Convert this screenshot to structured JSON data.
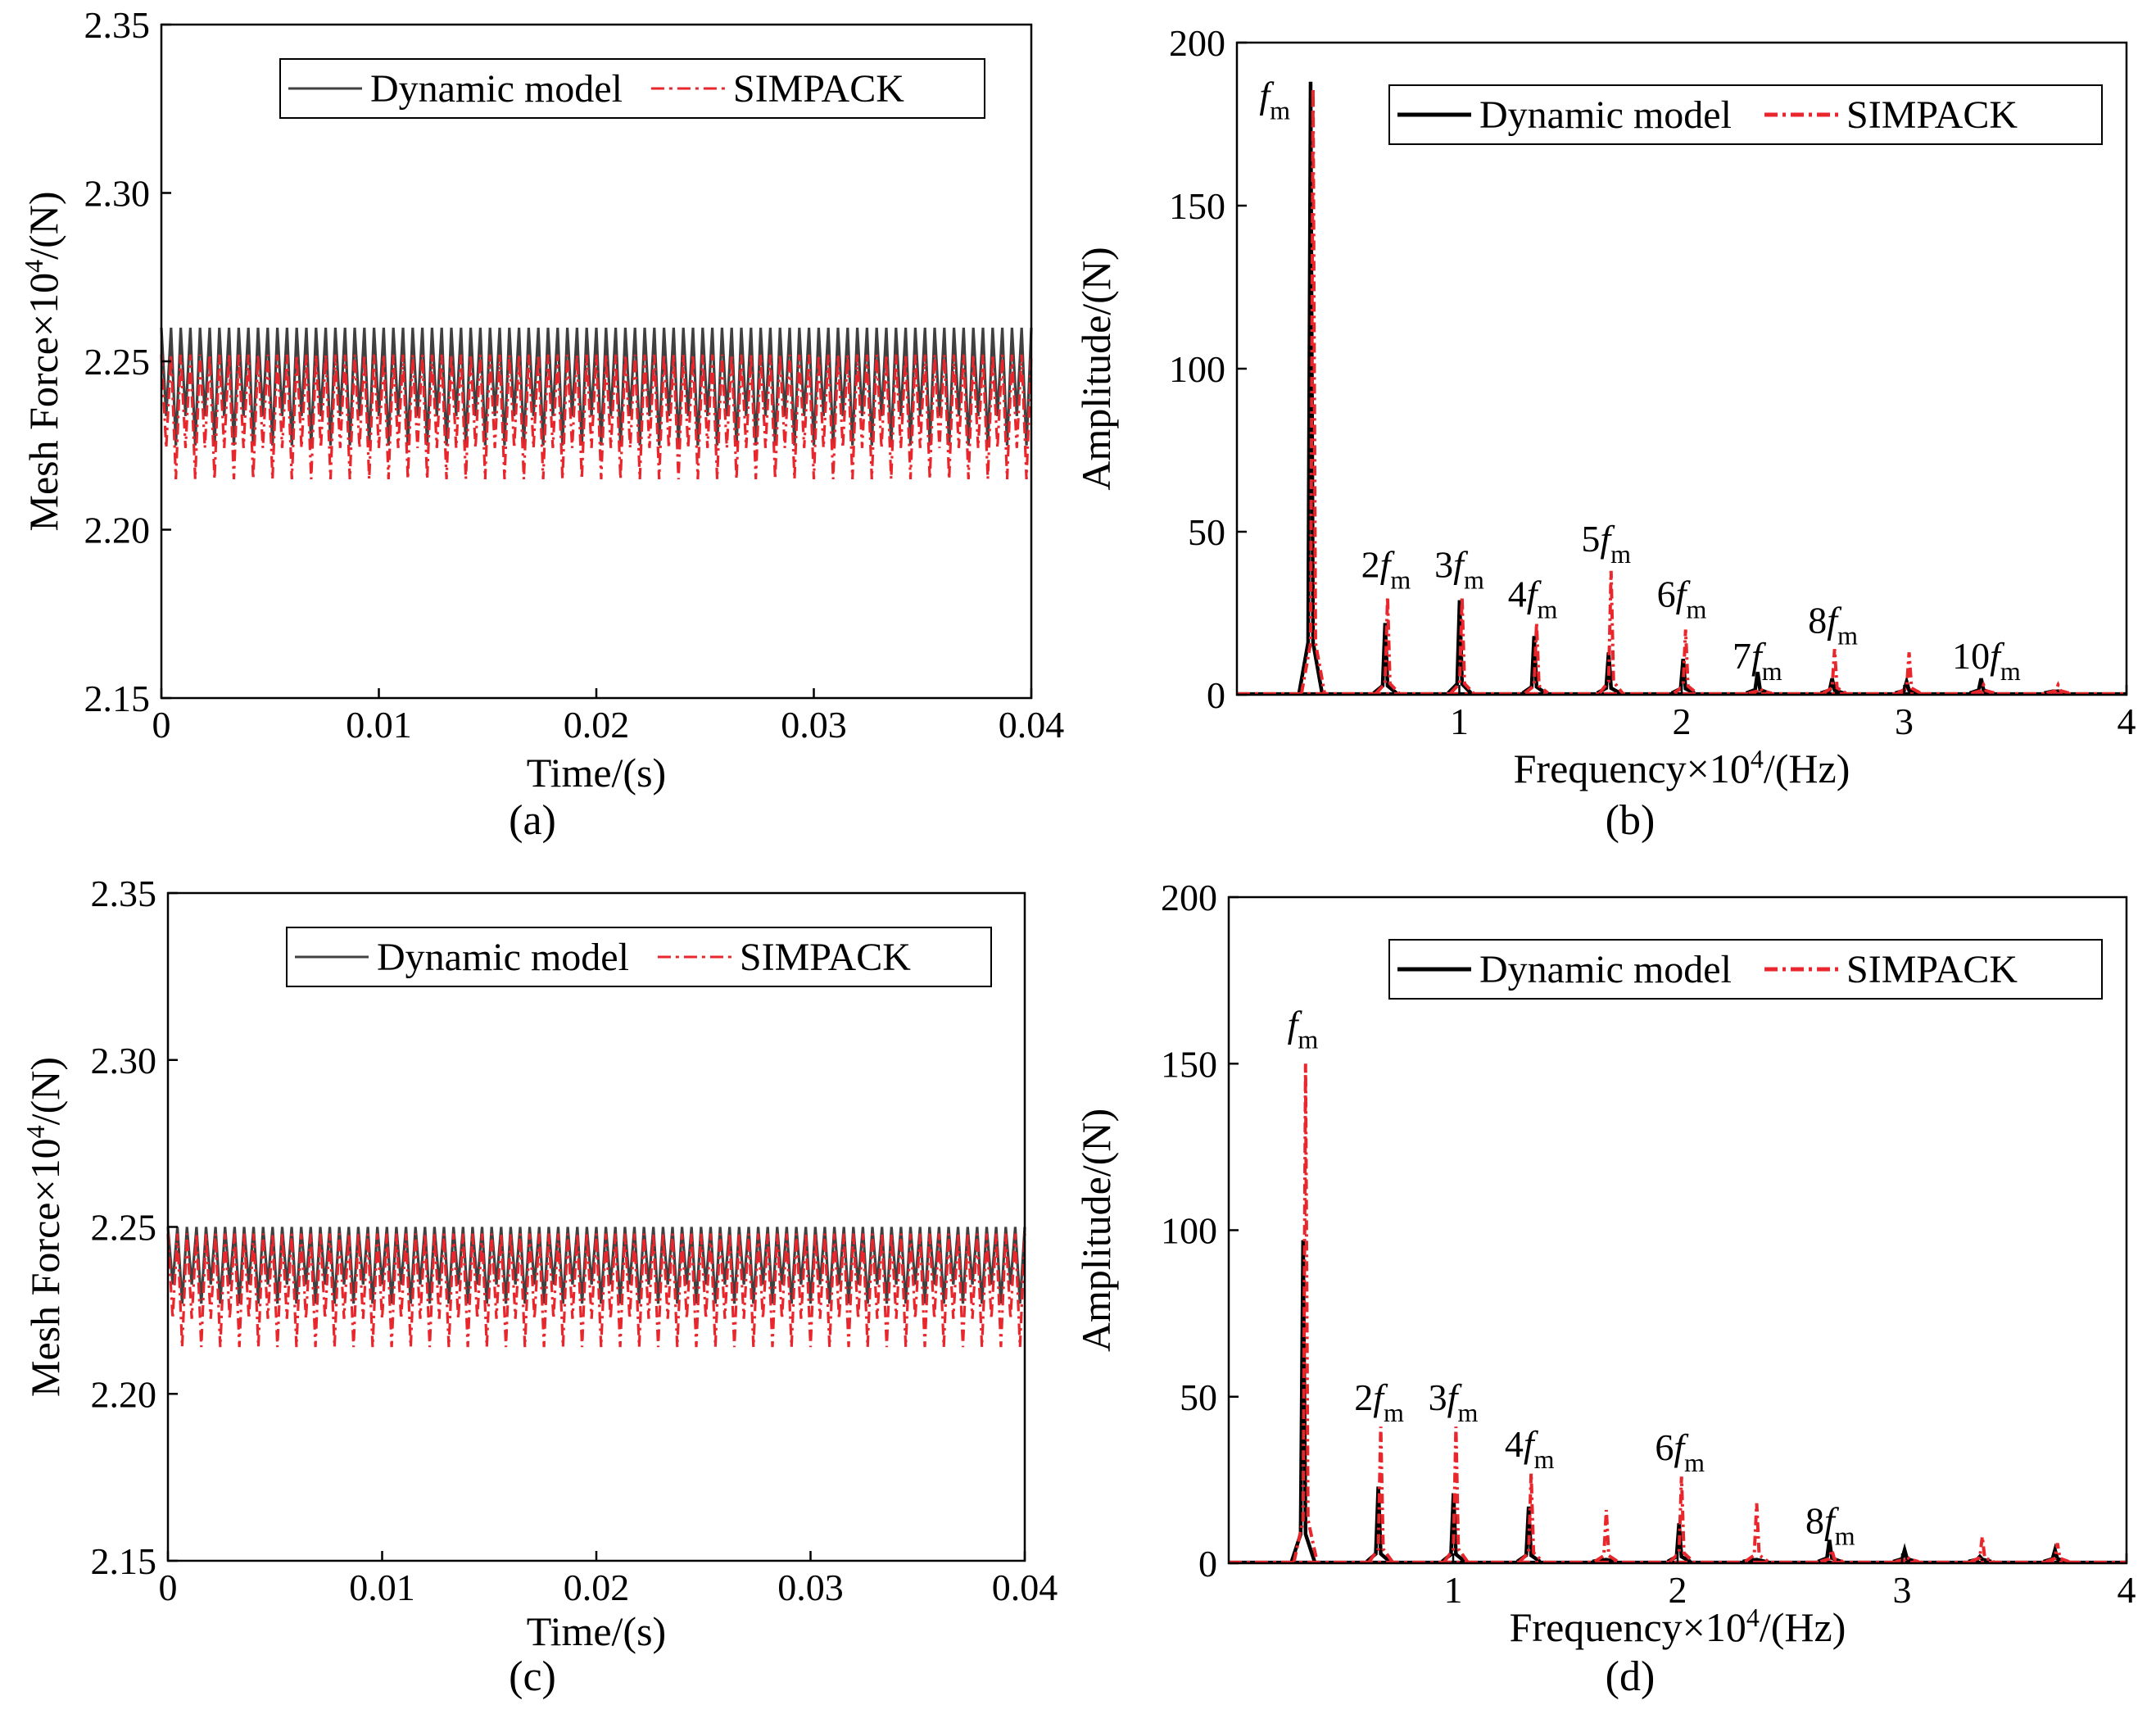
{
  "colors": {
    "dynamic": "#000000",
    "dynamic_time": "#404040",
    "simpack": "#e8262b",
    "axis": "#000000"
  },
  "panels": [
    {
      "id": "a",
      "caption": "(a)",
      "kind": "time",
      "legend": [
        "Dynamic model",
        "SIMPACK"
      ],
      "chart_data": {
        "type": "line",
        "xlabel": "Time/(s)",
        "ylabel": {
          "base": "Mesh Force×10",
          "sup": "4",
          "tail": "/(N)"
        },
        "xlim": [
          0,
          0.04
        ],
        "ylim": [
          2.15,
          2.35
        ],
        "xticks": [
          "0",
          "0.01",
          "0.02",
          "0.03",
          "0.04"
        ],
        "yticks": [
          "2.15",
          "2.20",
          "2.25",
          "2.30",
          "2.35"
        ],
        "series": [
          {
            "name": "Dynamic model",
            "band": [
              2.225,
              2.26
            ],
            "cycles": 90
          },
          {
            "name": "SIMPACK",
            "band": [
              2.215,
              2.252
            ],
            "cycles": 90
          }
        ]
      }
    },
    {
      "id": "b",
      "caption": "(b)",
      "kind": "freq",
      "legend": [
        "Dynamic model",
        "SIMPACK"
      ],
      "chart_data": {
        "type": "line",
        "xlabel": {
          "base": "Frequency×10",
          "sup": "4",
          "tail": "/(Hz)"
        },
        "ylabel": "Amplitude/(N)",
        "xlim": [
          0,
          4
        ],
        "ylim": [
          0,
          200
        ],
        "xticks": [
          "1",
          "2",
          "3",
          "4"
        ],
        "yticks": [
          "0",
          "50",
          "100",
          "150",
          "200"
        ],
        "peaks_x": [
          0.335,
          0.67,
          1.005,
          1.34,
          1.675,
          2.01,
          2.345,
          2.68,
          3.015,
          3.35,
          3.685
        ],
        "series": [
          {
            "name": "Dynamic model",
            "values": [
              188,
              22,
              29,
              18,
              13,
              11,
              7,
              5,
              4,
              5,
              1
            ]
          },
          {
            "name": "SIMPACK",
            "values": [
              186,
              30,
              30,
              22,
              38,
              20,
              2,
              14,
              13,
              3,
              3
            ]
          }
        ],
        "annotations": [
          {
            "label": "f",
            "sub": "m",
            "x": 0.17,
            "y": 180
          },
          {
            "label": "2f",
            "sub": "m",
            "x": 0.67,
            "y": 36
          },
          {
            "label": "3f",
            "sub": "m",
            "x": 1.0,
            "y": 36
          },
          {
            "label": "4f",
            "sub": "m",
            "x": 1.33,
            "y": 27
          },
          {
            "label": "5f",
            "sub": "m",
            "x": 1.66,
            "y": 44
          },
          {
            "label": "6f",
            "sub": "m",
            "x": 2.0,
            "y": 27
          },
          {
            "label": "7f",
            "sub": "m",
            "x": 2.34,
            "y": 8
          },
          {
            "label": "8f",
            "sub": "m",
            "x": 2.68,
            "y": 19
          },
          {
            "label": "10f",
            "sub": "m",
            "x": 3.37,
            "y": 8
          }
        ]
      }
    },
    {
      "id": "c",
      "caption": "(c)",
      "kind": "time",
      "legend": [
        "Dynamic model",
        "SIMPACK"
      ],
      "chart_data": {
        "type": "line",
        "xlabel": "Time/(s)",
        "ylabel": {
          "base": "Mesh Force×10",
          "sup": "4",
          "tail": "/(N)"
        },
        "xlim": [
          0,
          0.04
        ],
        "ylim": [
          2.15,
          2.35
        ],
        "xticks": [
          "0",
          "0.01",
          "0.02",
          "0.03",
          "0.04"
        ],
        "yticks": [
          "2.15",
          "2.20",
          "2.25",
          "2.30",
          "2.35"
        ],
        "series": [
          {
            "name": "Dynamic model",
            "band": [
              2.227,
              2.25
            ],
            "cycles": 90
          },
          {
            "name": "SIMPACK",
            "band": [
              2.214,
              2.248
            ],
            "cycles": 90
          }
        ]
      }
    },
    {
      "id": "d",
      "caption": "(d)",
      "kind": "freq",
      "legend": [
        "Dynamic model",
        "SIMPACK"
      ],
      "chart_data": {
        "type": "line",
        "xlabel": {
          "base": "Frequency×10",
          "sup": "4",
          "tail": "/(Hz)"
        },
        "ylabel": "Amplitude/(N)",
        "xlim": [
          0,
          4
        ],
        "ylim": [
          0,
          200
        ],
        "xticks": [
          "1",
          "2",
          "3",
          "4"
        ],
        "yticks": [
          "0",
          "50",
          "100",
          "150",
          "200"
        ],
        "peaks_x": [
          0.335,
          0.67,
          1.005,
          1.34,
          1.675,
          2.01,
          2.345,
          2.68,
          3.015,
          3.35,
          3.685
        ],
        "series": [
          {
            "name": "Dynamic model",
            "values": [
              97,
              23,
              21,
              17,
              1,
              12,
              1,
              7,
              4,
              2,
              4
            ]
          },
          {
            "name": "SIMPACK",
            "values": [
              150,
              41,
              41,
              27,
              16,
              26,
              18,
              4,
              2,
              8,
              6
            ]
          }
        ],
        "annotations": [
          {
            "label": "f",
            "sub": "m",
            "x": 0.33,
            "y": 158
          },
          {
            "label": "2f",
            "sub": "m",
            "x": 0.67,
            "y": 46
          },
          {
            "label": "3f",
            "sub": "m",
            "x": 1.0,
            "y": 46
          },
          {
            "label": "4f",
            "sub": "m",
            "x": 1.34,
            "y": 32
          },
          {
            "label": "6f",
            "sub": "m",
            "x": 2.01,
            "y": 31
          },
          {
            "label": "8f",
            "sub": "m",
            "x": 2.68,
            "y": 9
          }
        ]
      }
    }
  ]
}
